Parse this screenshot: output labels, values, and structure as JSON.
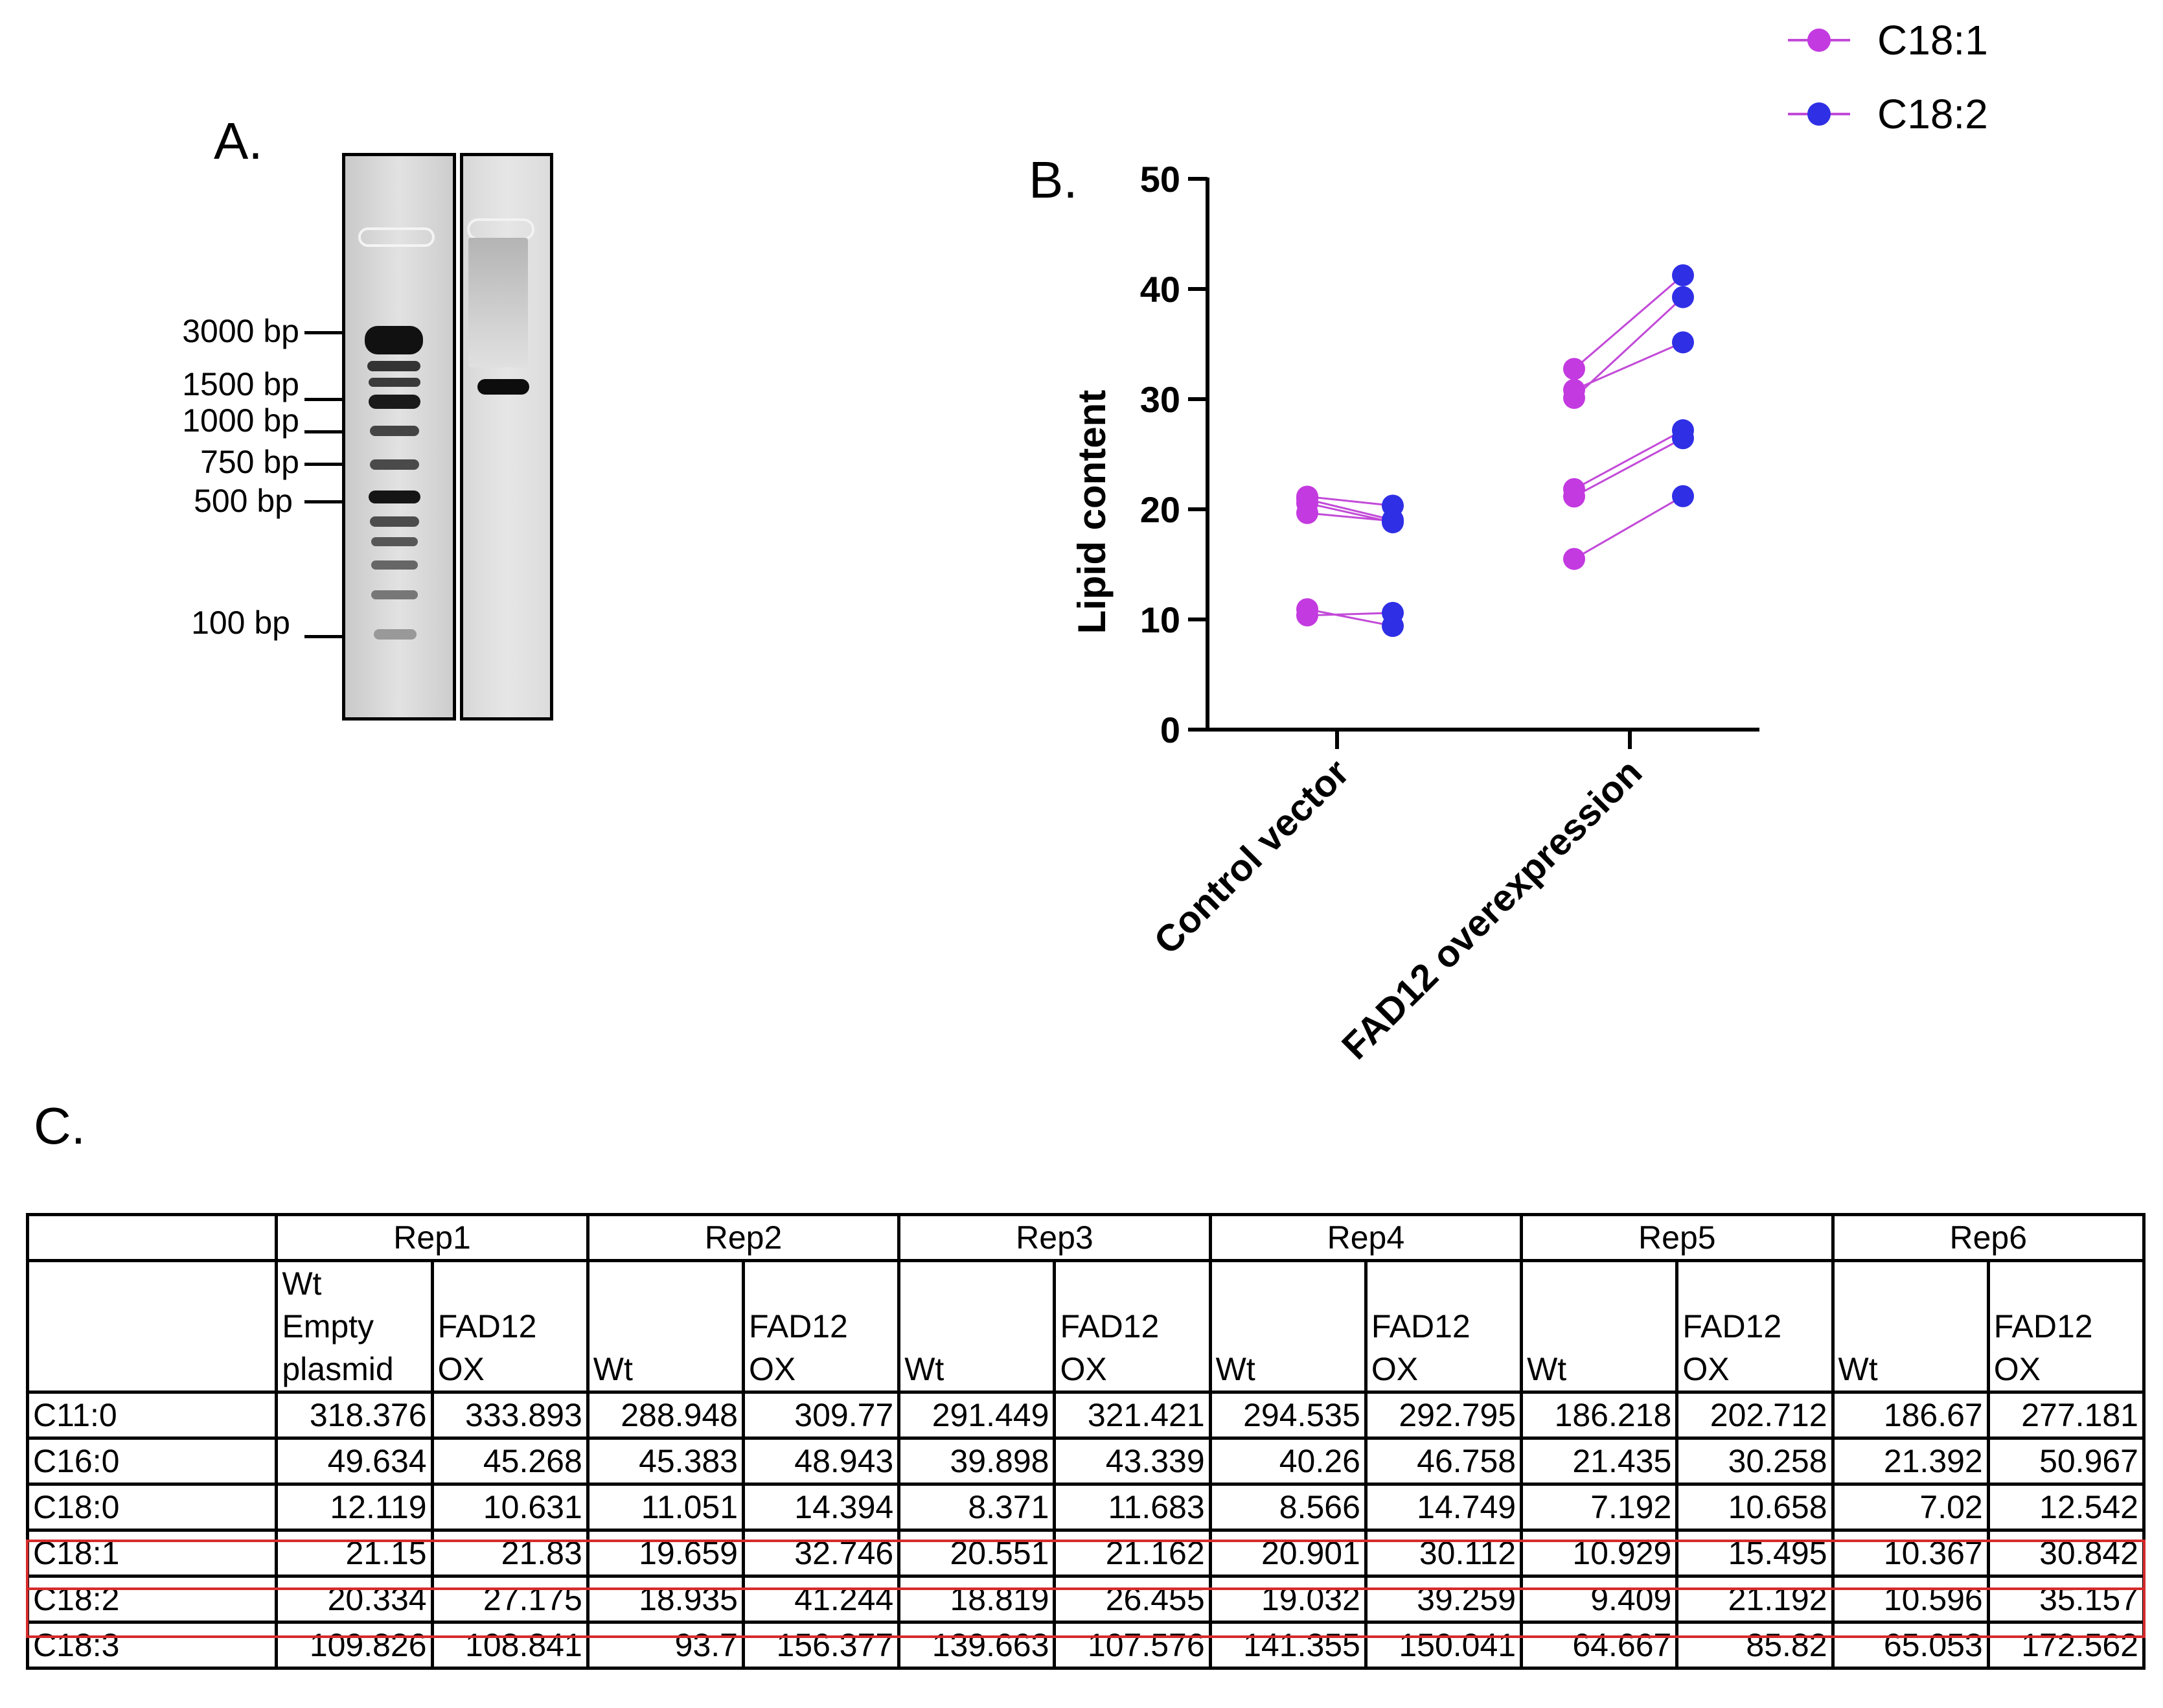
{
  "panel_labels": {
    "a": "A.",
    "b": "B.",
    "c": "C."
  },
  "gel": {
    "ladder_markers": [
      "3000 bp",
      "1500 bp",
      "1000 bp",
      "750 bp",
      "500 bp",
      "100 bp"
    ]
  },
  "chart_data": {
    "type": "scatter",
    "subtype": "paired dot plot",
    "ylabel": "Lipid content",
    "ylim": [
      0,
      50
    ],
    "yticks": [
      0,
      10,
      20,
      30,
      40,
      50
    ],
    "categories": [
      "Control vector",
      "FAD12 overexpression"
    ],
    "legend": [
      "C18:1",
      "C18:2"
    ],
    "legend_position": "top-right",
    "colors": {
      "C18:1": "#c33ae0",
      "C18:2": "#2f2fe6",
      "line": "#c24ad8"
    },
    "series": [
      {
        "name": "C18:1",
        "control": [
          21.15,
          19.659,
          20.551,
          20.901,
          10.929,
          10.367
        ],
        "fad12": [
          21.83,
          32.746,
          21.162,
          30.112,
          15.495,
          30.842
        ]
      },
      {
        "name": "C18:2",
        "control": [
          20.334,
          18.935,
          18.819,
          19.032,
          9.409,
          10.596
        ],
        "fad12": [
          27.175,
          41.244,
          26.455,
          39.259,
          21.192,
          35.157
        ]
      }
    ]
  },
  "table": {
    "reps": [
      "Rep1",
      "Rep2",
      "Rep3",
      "Rep4",
      "Rep5",
      "Rep6"
    ],
    "conditions": [
      "Wt\nEmpty\nplasmid",
      "FAD12\nOX",
      "Wt",
      "FAD12\nOX",
      "Wt",
      "FAD12\nOX",
      "Wt",
      "FAD12\nOX",
      "Wt",
      "FAD12\nOX",
      "Wt",
      "FAD12\nOX"
    ],
    "rows": [
      {
        "label": "C11:0",
        "values": [
          "318.376",
          "333.893",
          "288.948",
          "309.77",
          "291.449",
          "321.421",
          "294.535",
          "292.795",
          "186.218",
          "202.712",
          "186.67",
          "277.181"
        ]
      },
      {
        "label": "C16:0",
        "values": [
          "49.634",
          "45.268",
          "45.383",
          "48.943",
          "39.898",
          "43.339",
          "40.26",
          "46.758",
          "21.435",
          "30.258",
          "21.392",
          "50.967"
        ]
      },
      {
        "label": "C18:0",
        "values": [
          "12.119",
          "10.631",
          "11.051",
          "14.394",
          "8.371",
          "11.683",
          "8.566",
          "14.749",
          "7.192",
          "10.658",
          "7.02",
          "12.542"
        ]
      },
      {
        "label": "C18:1",
        "values": [
          "21.15",
          "21.83",
          "19.659",
          "32.746",
          "20.551",
          "21.162",
          "20.901",
          "30.112",
          "10.929",
          "15.495",
          "10.367",
          "30.842"
        ]
      },
      {
        "label": "C18:2",
        "values": [
          "20.334",
          "27.175",
          "18.935",
          "41.244",
          "18.819",
          "26.455",
          "19.032",
          "39.259",
          "9.409",
          "21.192",
          "10.596",
          "35.157"
        ]
      },
      {
        "label": "C18:3",
        "values": [
          "109.826",
          "108.841",
          "93.7",
          "156.377",
          "139.663",
          "107.576",
          "141.355",
          "150.041",
          "64.667",
          "85.82",
          "65.053",
          "172.562"
        ]
      }
    ]
  }
}
